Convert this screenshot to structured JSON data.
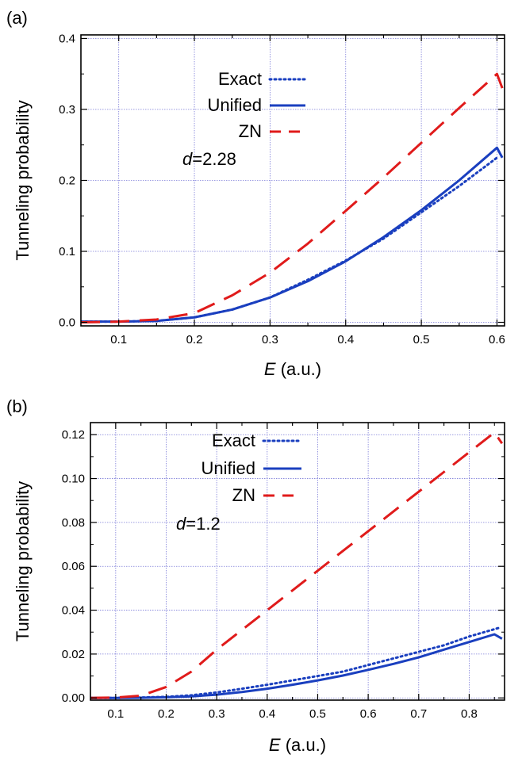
{
  "chart_data": [
    {
      "type": "line",
      "panel_label": "(a)",
      "xlabel_italic": "E",
      "xlabel_rest": " (a.u.)",
      "ylabel": "Tunneling probability",
      "xlim": [
        0.05,
        0.61
      ],
      "ylim": [
        -0.005,
        0.405
      ],
      "xticks": [
        0.1,
        0.2,
        0.3,
        0.4,
        0.5,
        0.6
      ],
      "xtick_labels": [
        "0.1",
        "0.2",
        "0.3",
        "0.4",
        "0.5",
        "0.6"
      ],
      "yticks": [
        0.0,
        0.1,
        0.2,
        0.3,
        0.4
      ],
      "ytick_labels": [
        "0.0",
        "0.1",
        "0.2",
        "0.3",
        "0.4"
      ],
      "grid": true,
      "legend_position": "top-left",
      "annotation_italic": "d",
      "annotation_rest": "=2.28",
      "series": [
        {
          "name": "Exact",
          "style": "dotted",
          "color": "#1a3fbf",
          "x": [
            0.05,
            0.1,
            0.15,
            0.2,
            0.25,
            0.3,
            0.35,
            0.4,
            0.45,
            0.5,
            0.55,
            0.6
          ],
          "y": [
            0.001,
            0.001,
            0.002,
            0.007,
            0.018,
            0.035,
            0.06,
            0.087,
            0.118,
            0.155,
            0.192,
            0.232
          ]
        },
        {
          "name": "Unified",
          "style": "solid",
          "color": "#1a3fbf",
          "x": [
            0.05,
            0.1,
            0.15,
            0.2,
            0.25,
            0.3,
            0.35,
            0.4,
            0.45,
            0.5,
            0.55,
            0.6,
            0.607
          ],
          "y": [
            0.001,
            0.001,
            0.002,
            0.007,
            0.018,
            0.035,
            0.058,
            0.086,
            0.12,
            0.158,
            0.2,
            0.246,
            0.232
          ]
        },
        {
          "name": "ZN",
          "style": "dashed",
          "color": "#e01b1b",
          "x": [
            0.05,
            0.1,
            0.15,
            0.2,
            0.25,
            0.3,
            0.35,
            0.4,
            0.45,
            0.5,
            0.55,
            0.6,
            0.607
          ],
          "y": [
            0.0,
            0.001,
            0.004,
            0.013,
            0.038,
            0.07,
            0.111,
            0.157,
            0.204,
            0.253,
            0.302,
            0.35,
            0.33
          ]
        }
      ]
    },
    {
      "type": "line",
      "panel_label": "(b)",
      "xlabel_italic": "E",
      "xlabel_rest": " (a.u.)",
      "ylabel": "Tunneling probability",
      "xlim": [
        0.05,
        0.87
      ],
      "ylim": [
        -0.001,
        0.1255
      ],
      "xticks": [
        0.1,
        0.2,
        0.3,
        0.4,
        0.5,
        0.6,
        0.7,
        0.8
      ],
      "xtick_labels": [
        "0.1",
        "0.2",
        "0.3",
        "0.4",
        "0.5",
        "0.6",
        "0.7",
        "0.8"
      ],
      "yticks": [
        0.0,
        0.02,
        0.04,
        0.06,
        0.08,
        0.1,
        0.12
      ],
      "ytick_labels": [
        "0.00",
        "0.02",
        "0.04",
        "0.06",
        "0.08",
        "0.10",
        "0.12"
      ],
      "grid": true,
      "legend_position": "top-left",
      "annotation_italic": "d",
      "annotation_rest": "=1.2",
      "series": [
        {
          "name": "Exact",
          "style": "dotted",
          "color": "#1a3fbf",
          "x": [
            0.05,
            0.1,
            0.15,
            0.2,
            0.25,
            0.3,
            0.35,
            0.4,
            0.45,
            0.5,
            0.55,
            0.6,
            0.65,
            0.7,
            0.75,
            0.8,
            0.86
          ],
          "y": [
            0.0,
            0.0,
            0.0002,
            0.0005,
            0.0012,
            0.0025,
            0.0042,
            0.006,
            0.008,
            0.01,
            0.012,
            0.015,
            0.018,
            0.021,
            0.024,
            0.028,
            0.032
          ]
        },
        {
          "name": "Unified",
          "style": "solid",
          "color": "#1a3fbf",
          "x": [
            0.05,
            0.1,
            0.15,
            0.2,
            0.25,
            0.3,
            0.35,
            0.4,
            0.45,
            0.5,
            0.55,
            0.6,
            0.65,
            0.7,
            0.75,
            0.8,
            0.85,
            0.865
          ],
          "y": [
            0.0,
            0.0,
            0.0001,
            0.0003,
            0.0007,
            0.0015,
            0.0027,
            0.0042,
            0.006,
            0.008,
            0.0102,
            0.0128,
            0.0155,
            0.0185,
            0.022,
            0.0255,
            0.029,
            0.027
          ]
        },
        {
          "name": "ZN",
          "style": "dashed",
          "color": "#e01b1b",
          "x": [
            0.05,
            0.1,
            0.15,
            0.2,
            0.25,
            0.3,
            0.35,
            0.4,
            0.45,
            0.5,
            0.55,
            0.6,
            0.65,
            0.7,
            0.75,
            0.8,
            0.85,
            0.865
          ],
          "y": [
            0.0,
            0.0002,
            0.001,
            0.005,
            0.012,
            0.022,
            0.031,
            0.04,
            0.049,
            0.058,
            0.067,
            0.076,
            0.085,
            0.094,
            0.103,
            0.112,
            0.121,
            0.116
          ]
        }
      ]
    }
  ]
}
